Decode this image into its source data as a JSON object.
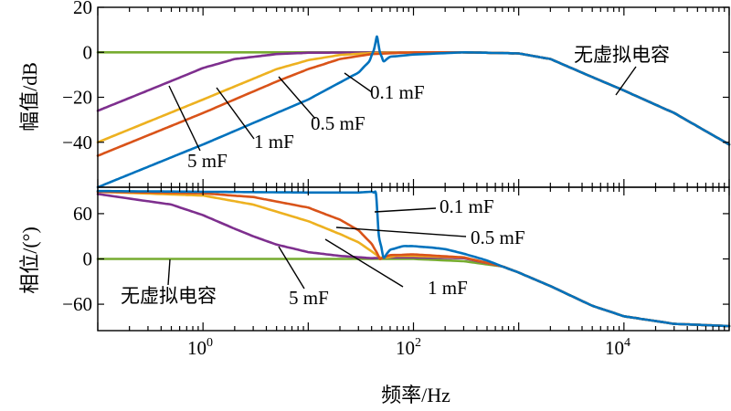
{
  "chart_data": [
    {
      "type": "line",
      "title": "",
      "ylabel": "幅值/dB",
      "xlabel": "",
      "xscale": "log",
      "xlim": [
        0.1,
        100000
      ],
      "ylim": [
        -60,
        20
      ],
      "yticks": [
        20,
        0,
        -20,
        -40
      ],
      "ytick_labels": [
        "20",
        "0",
        "−20",
        "−40"
      ],
      "grid": false,
      "annotations": [
        {
          "text": "无虚拟电容",
          "series": "无虚拟电容"
        },
        {
          "text": "0.1 mF",
          "series": "0.1 mF"
        },
        {
          "text": "0.5 mF",
          "series": "0.5 mF"
        },
        {
          "text": "1 mF",
          "series": "1 mF"
        },
        {
          "text": "5 mF",
          "series": "5 mF"
        }
      ],
      "series": [
        {
          "name": "无虚拟电容",
          "color": "#77AC30",
          "x": [
            0.1,
            1,
            10,
            100,
            300,
            1000,
            2000,
            5000,
            10000,
            30000,
            100000
          ],
          "y": [
            0,
            0,
            0,
            0,
            0,
            -0.5,
            -3,
            -11,
            -17,
            -27,
            -41
          ]
        },
        {
          "name": "0.1 mF",
          "color": "#0072BD",
          "x": [
            0.1,
            1,
            10,
            30,
            38,
            42,
            45,
            48,
            52,
            60,
            100,
            300,
            1000,
            2000,
            5000,
            10000,
            30000,
            100000
          ],
          "y": [
            -60,
            -41,
            -21,
            -9,
            -4,
            1,
            7,
            0,
            -4,
            -2,
            -1,
            0,
            -0.5,
            -3,
            -11,
            -17,
            -27,
            -41
          ]
        },
        {
          "name": "0.5 mF",
          "color": "#D95319",
          "x": [
            0.1,
            1,
            5,
            10,
            20,
            40,
            100,
            300,
            1000,
            2000,
            5000,
            10000,
            30000,
            100000
          ],
          "y": [
            -46,
            -27,
            -13,
            -7.5,
            -3,
            -0.8,
            0,
            0,
            -0.5,
            -3,
            -11,
            -17,
            -27,
            -41
          ]
        },
        {
          "name": "1 mF",
          "color": "#EDB120",
          "x": [
            0.1,
            1,
            5,
            10,
            20,
            40,
            100,
            300,
            1000,
            2000,
            5000,
            10000,
            30000,
            100000
          ],
          "y": [
            -40,
            -21,
            -7.5,
            -3.5,
            -1.2,
            -0.3,
            0,
            0,
            -0.5,
            -3,
            -11,
            -17,
            -27,
            -41
          ]
        },
        {
          "name": "5 mF",
          "color": "#7E2F8E",
          "x": [
            0.1,
            0.3,
            1,
            2,
            5,
            10,
            100,
            300,
            1000,
            2000,
            5000,
            10000,
            30000,
            100000
          ],
          "y": [
            -26,
            -17,
            -7,
            -3,
            -0.8,
            -0.2,
            0,
            0,
            -0.5,
            -3,
            -11,
            -17,
            -27,
            -41
          ]
        }
      ]
    },
    {
      "type": "line",
      "title": "",
      "ylabel": "相位/(°)",
      "xlabel": "频率/Hz",
      "xscale": "log",
      "xlim": [
        0.1,
        100000
      ],
      "ylim": [
        -95,
        95
      ],
      "yticks": [
        60,
        0,
        -60
      ],
      "ytick_labels": [
        "60",
        "0",
        "−60"
      ],
      "xtick_labels": [
        "10",
        "10",
        "10"
      ],
      "xtick_exponents": [
        "0",
        "2",
        "4"
      ],
      "grid": false,
      "annotations": [
        {
          "text": "0.1 mF",
          "series": "0.1 mF"
        },
        {
          "text": "0.5 mF",
          "series": "0.5 mF"
        },
        {
          "text": "1 mF",
          "series": "1 mF"
        },
        {
          "text": "5 mF",
          "series": "5 mF"
        },
        {
          "text": "无虚拟电容",
          "series": "无虚拟电容"
        }
      ],
      "series": [
        {
          "name": "无虚拟电容",
          "color": "#77AC30",
          "x": [
            0.1,
            100,
            300,
            700,
            1000,
            2000,
            5000,
            10000,
            30000,
            100000
          ],
          "y": [
            0,
            0,
            -3,
            -10,
            -18,
            -36,
            -62,
            -76,
            -86,
            -89
          ]
        },
        {
          "name": "0.1 mF",
          "color": "#0072BD",
          "x": [
            0.1,
            1,
            10,
            30,
            40,
            44,
            47,
            52,
            60,
            80,
            100,
            150,
            200,
            300,
            500,
            700,
            1000,
            2000,
            5000,
            10000,
            30000,
            100000
          ],
          "y": [
            90,
            89,
            88,
            88,
            89,
            87,
            30,
            2,
            12,
            17,
            17,
            15,
            13,
            7,
            -2,
            -10,
            -18,
            -36,
            -62,
            -76,
            -86,
            -89
          ]
        },
        {
          "name": "0.5 mF",
          "color": "#D95319",
          "x": [
            0.1,
            1,
            3,
            10,
            20,
            30,
            40,
            45,
            48,
            52,
            60,
            100,
            300,
            700,
            1000,
            2000,
            5000,
            10000,
            30000,
            100000
          ],
          "y": [
            89,
            87,
            82,
            68,
            52,
            38,
            20,
            8,
            0,
            2,
            5,
            6,
            2,
            -10,
            -18,
            -36,
            -62,
            -76,
            -86,
            -89
          ]
        },
        {
          "name": "1 mF",
          "color": "#EDB120",
          "x": [
            0.1,
            1,
            3,
            10,
            20,
            30,
            40,
            48,
            55,
            70,
            100,
            300,
            700,
            1000,
            2000,
            5000,
            10000,
            30000,
            100000
          ],
          "y": [
            89,
            84,
            72,
            50,
            33,
            22,
            10,
            2,
            2,
            4,
            4,
            2,
            -10,
            -18,
            -36,
            -62,
            -76,
            -86,
            -89
          ]
        },
        {
          "name": "5 mF",
          "color": "#7E2F8E",
          "x": [
            0.1,
            0.5,
            1,
            2,
            3,
            5,
            10,
            20,
            40,
            60,
            100,
            300,
            700,
            1000,
            2000,
            5000,
            10000,
            30000,
            100000
          ],
          "y": [
            86,
            72,
            58,
            40,
            30,
            19,
            9,
            4,
            1,
            2,
            2,
            1,
            -10,
            -18,
            -36,
            -62,
            -76,
            -86,
            -89
          ]
        }
      ]
    }
  ]
}
